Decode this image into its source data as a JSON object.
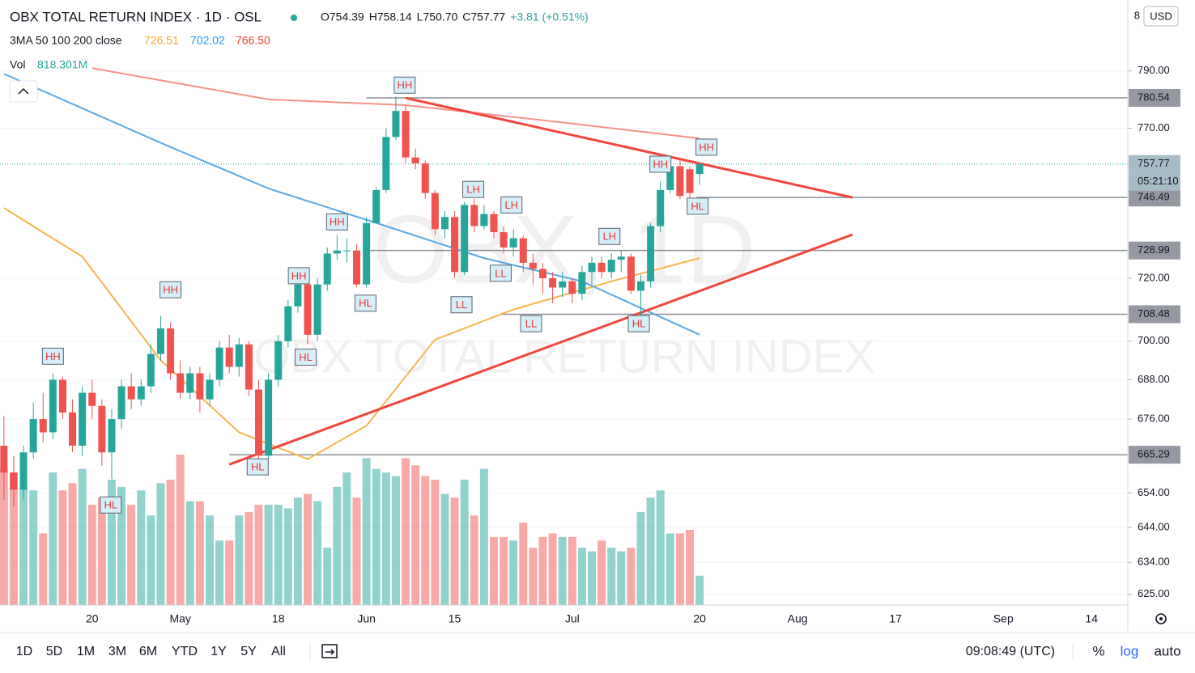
{
  "header": {
    "title": "OBX TOTAL RETURN INDEX · 1D · OSL",
    "ohlc": [
      "O754.39",
      "H758.14",
      "L750.70",
      "C757.77",
      "+3.81 (+0.51%)"
    ],
    "ma_label": "3MA 50 100 200 close",
    "ma_values": [
      "726.51",
      "702.02",
      "766.50"
    ],
    "vol_label": "Vol",
    "vol_value": "818.301M"
  },
  "currency": "USD",
  "currency_note": "8",
  "watermark": [
    "OBX, 1D",
    "OBX TOTAL RETURN INDEX"
  ],
  "chart_data": {
    "type": "candlestick",
    "log_scale": true,
    "grid": true,
    "up_color": "#26a69a",
    "down_color": "#ef5350",
    "xlim": [
      -0.4,
      114.7
    ],
    "ylim": [
      622,
      815.5
    ],
    "xticks": [
      {
        "value": 9,
        "label": "20"
      },
      {
        "value": 18,
        "label": "May"
      },
      {
        "value": 28,
        "label": "18"
      },
      {
        "value": 37,
        "label": "Jun"
      },
      {
        "value": 46,
        "label": "15"
      },
      {
        "value": 58,
        "label": "Jul"
      },
      {
        "value": 71,
        "label": "20"
      },
      {
        "value": 81,
        "label": "Aug"
      },
      {
        "value": 91,
        "label": "17"
      },
      {
        "value": 102,
        "label": "Sep"
      },
      {
        "value": 111,
        "label": "14"
      }
    ],
    "yticks": [
      {
        "value": 790,
        "label": "790.00"
      },
      {
        "value": 770,
        "label": "770.00"
      },
      {
        "value": 720,
        "label": "720.00"
      },
      {
        "value": 700,
        "label": "700.00"
      },
      {
        "value": 688,
        "label": "688.00"
      },
      {
        "value": 676,
        "label": "676.00"
      },
      {
        "value": 654,
        "label": "654.00"
      },
      {
        "value": 644,
        "label": "644.00"
      },
      {
        "value": 634,
        "label": "634.00"
      },
      {
        "value": 625,
        "label": "625.00"
      }
    ],
    "open": [
      668,
      660,
      655,
      666,
      676,
      672,
      688,
      678,
      668,
      684,
      680,
      666,
      676,
      686,
      682,
      686,
      696,
      704,
      690,
      684,
      690,
      682,
      688,
      698,
      692,
      699,
      685,
      665,
      688,
      700,
      711,
      718,
      702,
      718,
      728,
      729,
      729,
      718,
      738,
      749,
      767,
      776,
      760,
      758,
      748,
      736,
      740,
      722,
      744,
      737,
      741,
      735,
      730,
      733,
      725,
      723,
      720,
      717,
      719,
      715,
      722,
      725,
      722,
      726,
      727,
      716,
      719,
      737,
      749,
      757,
      756,
      754.39
    ],
    "high": [
      677,
      665,
      668,
      681,
      684,
      690,
      689,
      682,
      686,
      688,
      682,
      679,
      688,
      690,
      688,
      699,
      708,
      706,
      694,
      692,
      692,
      690,
      700,
      702,
      701,
      700,
      688,
      690,
      702,
      713,
      720,
      719,
      720,
      730,
      734,
      733,
      731,
      740,
      750,
      770,
      781,
      778,
      763,
      759,
      749,
      742,
      742,
      745,
      746,
      744,
      742,
      737,
      736,
      734,
      728,
      725,
      722,
      722,
      720,
      724,
      727,
      727,
      728,
      729,
      728,
      721,
      738,
      752,
      758,
      759,
      757,
      758.14
    ],
    "low": [
      652,
      650,
      652,
      664,
      669,
      670,
      676,
      666,
      665,
      676,
      662,
      658,
      673,
      679,
      680,
      684,
      694,
      688,
      682,
      682,
      678,
      680,
      686,
      690,
      689,
      683,
      664,
      664,
      686,
      698,
      709,
      699,
      700,
      716,
      726,
      725,
      717,
      717,
      738,
      748,
      766,
      758,
      756,
      746,
      734,
      733,
      720,
      721,
      735,
      736,
      733,
      728,
      727,
      722,
      718,
      715,
      712,
      714,
      712,
      713,
      718,
      720,
      720,
      722,
      715,
      708,
      717,
      735,
      748,
      746,
      746,
      750.7
    ],
    "close": [
      660,
      655,
      666,
      676,
      672,
      688,
      678,
      668,
      684,
      680,
      666,
      676,
      686,
      682,
      686,
      696,
      704,
      690,
      684,
      690,
      682,
      688,
      698,
      692,
      699,
      685,
      665,
      688,
      700,
      711,
      718,
      702,
      718,
      728,
      729,
      729,
      718,
      738,
      749,
      767,
      776,
      760,
      758,
      748,
      736,
      740,
      722,
      744,
      737,
      741,
      735,
      730,
      733,
      725,
      723,
      720,
      717,
      719,
      715,
      722,
      725,
      722,
      726,
      727,
      716,
      719,
      737,
      749,
      757,
      747,
      748,
      757.77
    ],
    "volume": [
      3800,
      3700,
      3300,
      3200,
      2000,
      3700,
      3200,
      3400,
      3800,
      2800,
      3000,
      3500,
      3300,
      2800,
      3200,
      2500,
      3400,
      3500,
      4200,
      2900,
      2900,
      2500,
      1800,
      1800,
      2500,
      2600,
      2800,
      2800,
      2800,
      2700,
      3000,
      3100,
      2900,
      1600,
      3300,
      3700,
      3000,
      4100,
      3800,
      3700,
      3600,
      4100,
      3900,
      3600,
      3500,
      3100,
      3000,
      3500,
      2500,
      3800,
      1900,
      1900,
      1800,
      2300,
      1600,
      1900,
      2000,
      1900,
      1900,
      1600,
      1500,
      1800,
      1600,
      1500,
      1600,
      2600,
      3000,
      3200,
      2000,
      2000,
      2100,
      818.301
    ],
    "series": [
      {
        "name": "MA 50",
        "color": "#f6b54e",
        "x": [
          0,
          8,
          16,
          24,
          31,
          37,
          44,
          52,
          62,
          71
        ],
        "values": [
          743,
          727,
          694,
          672,
          664,
          674,
          700.5,
          710,
          719,
          726.51
        ]
      },
      {
        "name": "MA 100",
        "color": "#5aa9e6",
        "x": [
          0,
          16,
          27,
          39,
          49,
          59,
          71
        ],
        "values": [
          789,
          765,
          749.5,
          737,
          726.5,
          719,
          702.02
        ]
      },
      {
        "name": "MA 200",
        "color": "#f4928a",
        "x": [
          9,
          27,
          41,
          57,
          71
        ],
        "values": [
          791,
          780,
          778,
          772,
          766.5
        ]
      }
    ],
    "trendlines": [
      {
        "color": "#f0463c",
        "x": [
          41,
          86.6
        ],
        "values": [
          780.5,
          746.5
        ]
      },
      {
        "color": "#f0463c",
        "x": [
          23,
          86.6
        ],
        "values": [
          662.4,
          734.2
        ]
      }
    ],
    "levels": [
      {
        "value": 780.54,
        "x_start": 37
      },
      {
        "value": 746.49,
        "x_start": 70.7
      },
      {
        "value": 728.99,
        "x_start": 37.2
      },
      {
        "value": 708.48,
        "x_start": 50.8
      },
      {
        "value": 665.29,
        "x_start": 23
      }
    ],
    "last_price": 757.77,
    "countdown": "05:21:10",
    "annotations": [
      {
        "text": "HH",
        "x": 40.9,
        "y": 785
      },
      {
        "text": "HH",
        "x": 71.7,
        "y": 763.5
      },
      {
        "text": "HH",
        "x": 67,
        "y": 757.7
      },
      {
        "text": "LH",
        "x": 47.9,
        "y": 749.2
      },
      {
        "text": "HL",
        "x": 70.8,
        "y": 743.6
      },
      {
        "text": "LH",
        "x": 51.8,
        "y": 744
      },
      {
        "text": "HH",
        "x": 34,
        "y": 738.4
      },
      {
        "text": "LH",
        "x": 61.8,
        "y": 733.6
      },
      {
        "text": "HH",
        "x": 30.1,
        "y": 720.8
      },
      {
        "text": "LL",
        "x": 50.7,
        "y": 721.6
      },
      {
        "text": "HL",
        "x": 36.9,
        "y": 712
      },
      {
        "text": "LL",
        "x": 46.7,
        "y": 711.5
      },
      {
        "text": "LL",
        "x": 53.8,
        "y": 705.5
      },
      {
        "text": "HL",
        "x": 64.8,
        "y": 705.5
      },
      {
        "text": "HH",
        "x": 17,
        "y": 716.3
      },
      {
        "text": "HL",
        "x": 30.8,
        "y": 695
      },
      {
        "text": "HH",
        "x": 5,
        "y": 695.3
      },
      {
        "text": "HL",
        "x": 25.9,
        "y": 661.7
      },
      {
        "text": "HL",
        "x": 10.9,
        "y": 650.5
      }
    ]
  },
  "toolbar": {
    "ranges": [
      "1D",
      "5D",
      "1M",
      "3M",
      "6M",
      "YTD",
      "1Y",
      "5Y",
      "All"
    ],
    "time": "09:08:49 (UTC)",
    "percent": "%",
    "log": "log",
    "auto": "auto"
  }
}
